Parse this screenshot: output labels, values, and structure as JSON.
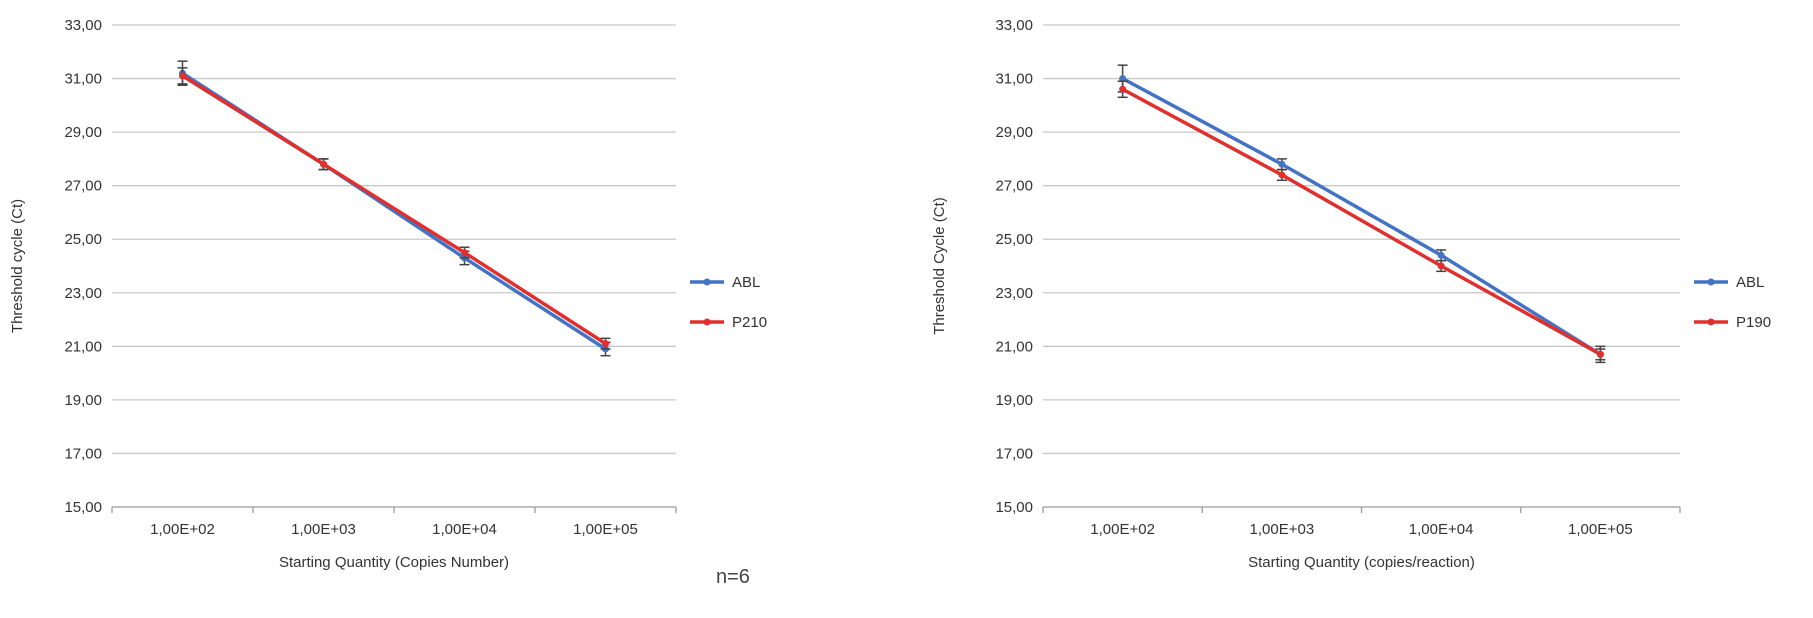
{
  "note": "n=6",
  "chart_data": [
    {
      "type": "line",
      "categories": [
        "1,00E+02",
        "1,00E+03",
        "1,00E+04",
        "1,00E+05"
      ],
      "xlabel": "Starting Quantity (Copies Number)",
      "ylabel": "Threshold cycle (Ct)",
      "ylim": [
        15,
        33
      ],
      "yticks": [
        "15,00",
        "17,00",
        "19,00",
        "21,00",
        "23,00",
        "25,00",
        "27,00",
        "29,00",
        "31,00",
        "33,00"
      ],
      "grid": true,
      "legend": "right",
      "series": [
        {
          "name": "ABL",
          "color": "#4472C4",
          "values": [
            31.2,
            27.8,
            24.3,
            20.9
          ],
          "error": [
            0.45,
            0.2,
            0.25,
            0.25
          ]
        },
        {
          "name": "P210",
          "color": "#E0302D",
          "values": [
            31.1,
            27.8,
            24.5,
            21.1
          ],
          "error": [
            0.3,
            0.2,
            0.2,
            0.2
          ]
        }
      ]
    },
    {
      "type": "line",
      "categories": [
        "1,00E+02",
        "1,00E+03",
        "1,00E+04",
        "1,00E+05"
      ],
      "xlabel": "Starting Quantity (copies/reaction)",
      "ylabel": "Threshold Cycle (Ct)",
      "ylim": [
        15,
        33
      ],
      "yticks": [
        "15,00",
        "17,00",
        "19,00",
        "21,00",
        "23,00",
        "25,00",
        "27,00",
        "29,00",
        "31,00",
        "33,00"
      ],
      "grid": true,
      "legend": "right",
      "series": [
        {
          "name": "ABL",
          "color": "#4472C4",
          "values": [
            31.0,
            27.8,
            24.4,
            20.7
          ],
          "error": [
            0.5,
            0.2,
            0.2,
            0.3
          ]
        },
        {
          "name": "P190",
          "color": "#E0302D",
          "values": [
            30.6,
            27.4,
            24.0,
            20.7
          ],
          "error": [
            0.3,
            0.2,
            0.2,
            0.2
          ]
        }
      ]
    }
  ]
}
